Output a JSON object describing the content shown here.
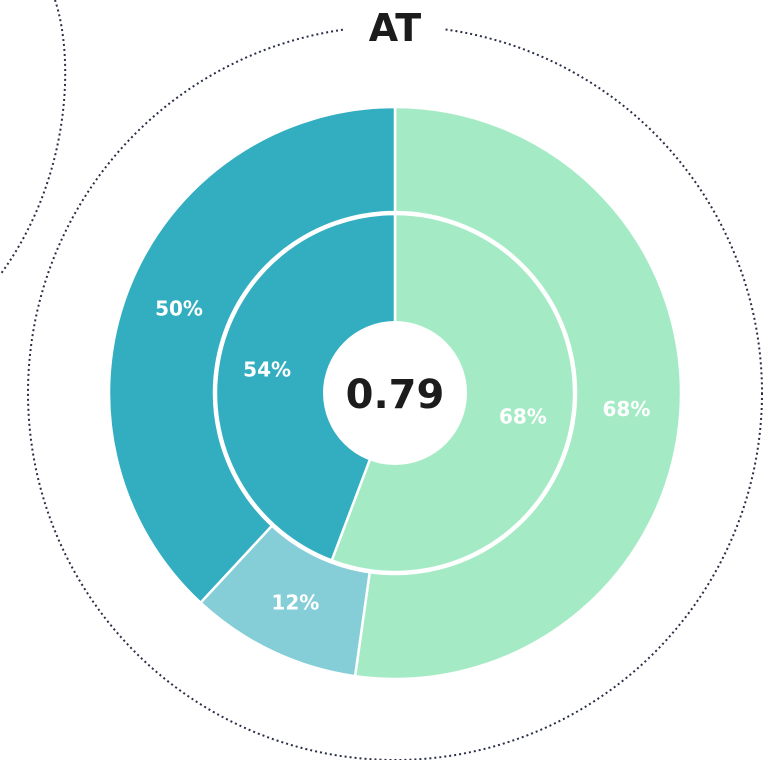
{
  "chart_data": {
    "type": "pie",
    "title": "AT",
    "center_value": "0.79",
    "outer_ring": [
      {
        "label": "68%",
        "value": 0.5223,
        "color": "#a4ebc5"
      },
      {
        "label": "12%",
        "value": 0.0967,
        "color": "#85ced8"
      },
      {
        "label": "50%",
        "value": 0.381,
        "color": "#33aec0"
      }
    ],
    "inner_ring": [
      {
        "label": "68%",
        "value": 0.5575,
        "color": "#a4ebc5"
      },
      {
        "label": "54%",
        "value": 0.4425,
        "color": "#33aec0"
      }
    ]
  }
}
